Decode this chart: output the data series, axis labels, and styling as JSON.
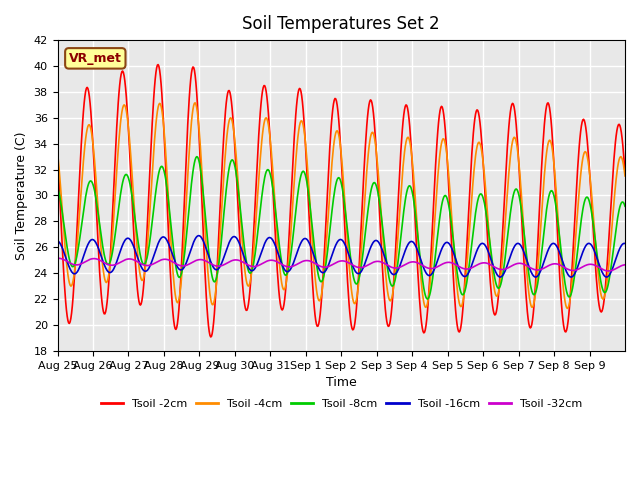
{
  "title": "Soil Temperatures Set 2",
  "xlabel": "Time",
  "ylabel": "Soil Temperature (C)",
  "ylim": [
    18,
    42
  ],
  "yticks": [
    18,
    20,
    22,
    24,
    26,
    28,
    30,
    32,
    34,
    36,
    38,
    40,
    42
  ],
  "x_labels": [
    "Aug 25",
    "Aug 26",
    "Aug 27",
    "Aug 28",
    "Aug 29",
    "Aug 30",
    "Aug 31",
    "Sep 1",
    "Sep 2",
    "Sep 3",
    "Sep 4",
    "Sep 5",
    "Sep 6",
    "Sep 7",
    "Sep 8",
    "Sep 9"
  ],
  "plot_bg_color": "#e8e8e8",
  "grid_color": "white",
  "series_colors": [
    "#ff0000",
    "#ff8c00",
    "#00cc00",
    "#0000cc",
    "#cc00cc"
  ],
  "series_labels": [
    "Tsoil -2cm",
    "Tsoil -4cm",
    "Tsoil -8cm",
    "Tsoil -16cm",
    "Tsoil -32cm"
  ],
  "annotation_text": "VR_met",
  "annotation_box_color": "#ffff99",
  "annotation_border_color": "#8b4513"
}
